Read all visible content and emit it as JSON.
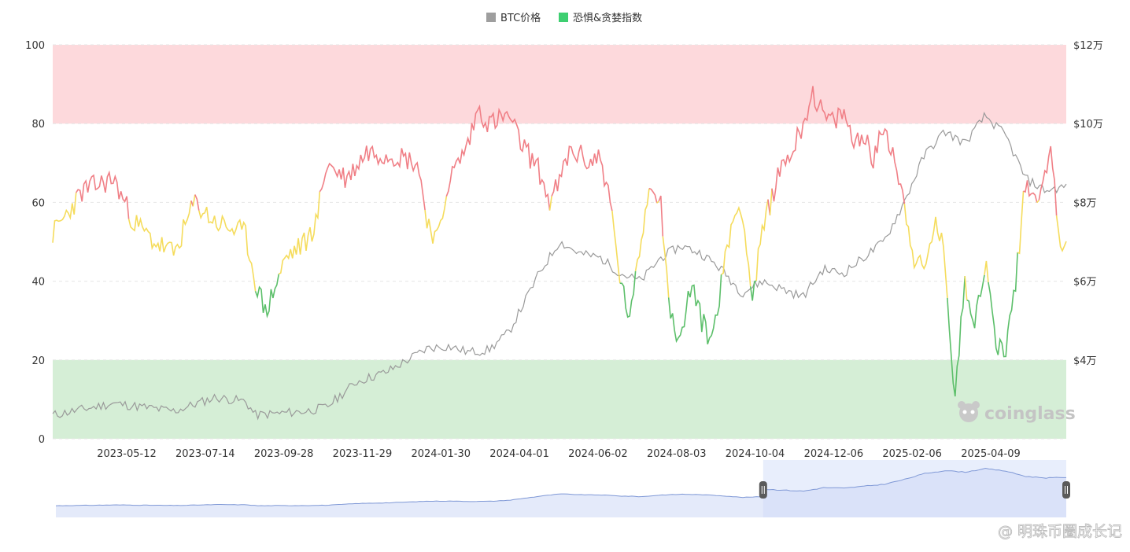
{
  "chart_data": {
    "type": "line",
    "legend": [
      {
        "name": "BTC价格",
        "color": "#9e9e9e"
      },
      {
        "name": "恐惧&贪婪指数",
        "color": "#3ecf71"
      }
    ],
    "legend_position": "top-center",
    "left_axis": {
      "ticks": [
        "0",
        "20",
        "40",
        "60",
        "80",
        "100"
      ],
      "range": [
        0,
        100
      ]
    },
    "right_axis": {
      "ticks": [
        "$4万",
        "$6万",
        "$8万",
        "$10万",
        "$12万"
      ],
      "range_usd": [
        20000,
        120000
      ]
    },
    "x_ticks": [
      "2023-05-12",
      "2023-07-14",
      "2023-09-28",
      "2023-11-29",
      "2024-01-30",
      "2024-04-01",
      "2024-06-02",
      "2024-08-03",
      "2024-10-04",
      "2024-12-06",
      "2025-02-06",
      "2025-04-09"
    ],
    "zones": [
      {
        "from": 80,
        "to": 100,
        "color": "#fdd9dc"
      },
      {
        "from": 0,
        "to": 20,
        "color": "#d5eed6"
      }
    ],
    "index_colors": {
      "fear": "#5cbf6a",
      "neutral": "#f5dc5c",
      "greed": "#f07f86"
    },
    "btc_price_keypoints": [
      [
        0,
        26000
      ],
      [
        0.06,
        29000
      ],
      [
        0.12,
        27000
      ],
      [
        0.16,
        30500
      ],
      [
        0.19,
        29500
      ],
      [
        0.2,
        26000
      ],
      [
        0.25,
        27000
      ],
      [
        0.27,
        28000
      ],
      [
        0.3,
        34500
      ],
      [
        0.33,
        37000
      ],
      [
        0.37,
        43000
      ],
      [
        0.39,
        43500
      ],
      [
        0.41,
        42000
      ],
      [
        0.43,
        42500
      ],
      [
        0.45,
        47000
      ],
      [
        0.46,
        52000
      ],
      [
        0.48,
        62000
      ],
      [
        0.5,
        70000
      ],
      [
        0.52,
        67000
      ],
      [
        0.54,
        66000
      ],
      [
        0.56,
        62000
      ],
      [
        0.58,
        60000
      ],
      [
        0.6,
        66000
      ],
      [
        0.62,
        69000
      ],
      [
        0.64,
        67000
      ],
      [
        0.66,
        63000
      ],
      [
        0.68,
        57000
      ],
      [
        0.7,
        60000
      ],
      [
        0.72,
        58000
      ],
      [
        0.74,
        56000
      ],
      [
        0.76,
        63000
      ],
      [
        0.78,
        62000
      ],
      [
        0.8,
        66000
      ],
      [
        0.82,
        70000
      ],
      [
        0.84,
        80000
      ],
      [
        0.86,
        92000
      ],
      [
        0.88,
        98000
      ],
      [
        0.9,
        95000
      ],
      [
        0.92,
        102000
      ],
      [
        0.94,
        97000
      ],
      [
        0.96,
        86000
      ],
      [
        0.98,
        83000
      ],
      [
        1,
        84000
      ]
    ],
    "fear_greed_keypoints": [
      [
        0,
        52
      ],
      [
        0.03,
        63
      ],
      [
        0.06,
        66
      ],
      [
        0.08,
        55
      ],
      [
        0.1,
        50
      ],
      [
        0.12,
        47
      ],
      [
        0.14,
        60
      ],
      [
        0.16,
        55
      ],
      [
        0.19,
        52
      ],
      [
        0.2,
        40
      ],
      [
        0.21,
        32
      ],
      [
        0.23,
        46
      ],
      [
        0.25,
        50
      ],
      [
        0.26,
        55
      ],
      [
        0.27,
        70
      ],
      [
        0.29,
        66
      ],
      [
        0.31,
        73
      ],
      [
        0.34,
        72
      ],
      [
        0.36,
        70
      ],
      [
        0.37,
        55
      ],
      [
        0.38,
        50
      ],
      [
        0.39,
        65
      ],
      [
        0.41,
        75
      ],
      [
        0.42,
        84
      ],
      [
        0.43,
        80
      ],
      [
        0.45,
        82
      ],
      [
        0.46,
        76
      ],
      [
        0.48,
        68
      ],
      [
        0.49,
        60
      ],
      [
        0.5,
        65
      ],
      [
        0.51,
        73
      ],
      [
        0.52,
        72
      ],
      [
        0.53,
        70
      ],
      [
        0.54,
        72
      ],
      [
        0.55,
        60
      ],
      [
        0.56,
        40
      ],
      [
        0.57,
        30
      ],
      [
        0.58,
        50
      ],
      [
        0.59,
        66
      ],
      [
        0.6,
        60
      ],
      [
        0.61,
        30
      ],
      [
        0.62,
        25
      ],
      [
        0.63,
        40
      ],
      [
        0.64,
        30
      ],
      [
        0.65,
        25
      ],
      [
        0.66,
        40
      ],
      [
        0.67,
        55
      ],
      [
        0.68,
        60
      ],
      [
        0.69,
        35
      ],
      [
        0.7,
        52
      ],
      [
        0.71,
        62
      ],
      [
        0.72,
        70
      ],
      [
        0.73,
        73
      ],
      [
        0.74,
        80
      ],
      [
        0.75,
        88
      ],
      [
        0.76,
        82
      ],
      [
        0.77,
        80
      ],
      [
        0.78,
        83
      ],
      [
        0.79,
        75
      ],
      [
        0.8,
        78
      ],
      [
        0.81,
        70
      ],
      [
        0.82,
        80
      ],
      [
        0.83,
        72
      ],
      [
        0.84,
        60
      ],
      [
        0.85,
        46
      ],
      [
        0.86,
        42
      ],
      [
        0.87,
        55
      ],
      [
        0.88,
        47
      ],
      [
        0.89,
        10
      ],
      [
        0.9,
        40
      ],
      [
        0.91,
        30
      ],
      [
        0.92,
        45
      ],
      [
        0.93,
        25
      ],
      [
        0.94,
        22
      ],
      [
        0.95,
        40
      ],
      [
        0.96,
        66
      ],
      [
        0.97,
        60
      ],
      [
        0.98,
        70
      ],
      [
        0.985,
        72
      ],
      [
        0.99,
        60
      ],
      [
        0.995,
        48
      ],
      [
        1,
        50
      ]
    ]
  },
  "watermark": {
    "brand": "coinglass"
  },
  "footer_watermark": {
    "text": "@ 明珠币圈成长记"
  }
}
